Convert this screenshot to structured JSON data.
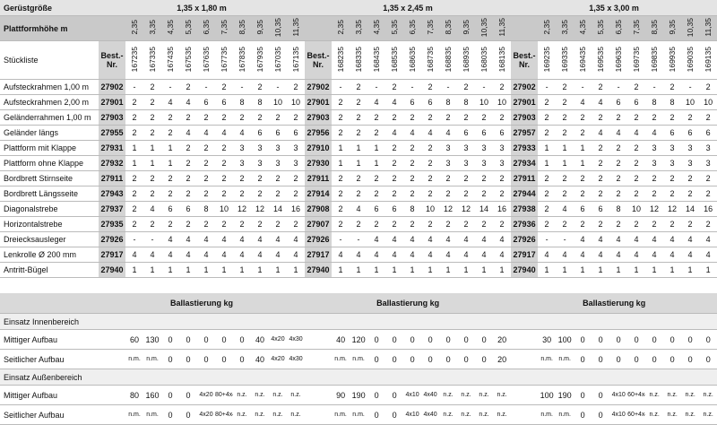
{
  "header": {
    "size_label": "Gerüstgröße",
    "height_label": "Plattformhöhe m",
    "list_label": "Stückliste",
    "best_label": "Best.-Nr."
  },
  "groups": [
    {
      "title": "1,35 x 1,80 m",
      "heights": [
        "2,35",
        "3,35",
        "4,35",
        "5,35",
        "6,35",
        "7,35",
        "8,35",
        "9,35",
        "10,35",
        "11,35"
      ],
      "article_numbers": [
        "167235",
        "167335",
        "167435",
        "167535",
        "167635",
        "167735",
        "167835",
        "167935",
        "167035",
        "167135"
      ]
    },
    {
      "title": "1,35 x 2,45 m",
      "heights": [
        "2,35",
        "3,35",
        "4,35",
        "5,35",
        "6,35",
        "7,35",
        "8,35",
        "9,35",
        "10,35",
        "11,35"
      ],
      "article_numbers": [
        "168235",
        "168335",
        "168435",
        "168535",
        "168635",
        "168735",
        "168835",
        "168935",
        "168035",
        "168135"
      ]
    },
    {
      "title": "1,35 x 3,00 m",
      "heights": [
        "2,35",
        "3,35",
        "4,35",
        "5,35",
        "6,35",
        "7,35",
        "8,35",
        "9,35",
        "10,35",
        "11,35"
      ],
      "article_numbers": [
        "169235",
        "169335",
        "169435",
        "169535",
        "169635",
        "169735",
        "169835",
        "169935",
        "169035",
        "169135"
      ]
    }
  ],
  "parts": [
    {
      "name": "Aufsteckrahmen 1,00 m",
      "best": [
        "27902",
        "27902",
        "27902"
      ],
      "values": [
        [
          "-",
          "2",
          "-",
          "2",
          "-",
          "2",
          "-",
          "2",
          "-",
          "2"
        ],
        [
          "-",
          "2",
          "-",
          "2",
          "-",
          "2",
          "-",
          "2",
          "-",
          "2"
        ],
        [
          "-",
          "2",
          "-",
          "2",
          "-",
          "2",
          "-",
          "2",
          "-",
          "2"
        ]
      ]
    },
    {
      "name": "Aufsteckrahmen 2,00 m",
      "best": [
        "27901",
        "27901",
        "27901"
      ],
      "values": [
        [
          "2",
          "2",
          "4",
          "4",
          "6",
          "6",
          "8",
          "8",
          "10",
          "10"
        ],
        [
          "2",
          "2",
          "4",
          "4",
          "6",
          "6",
          "8",
          "8",
          "10",
          "10"
        ],
        [
          "2",
          "2",
          "4",
          "4",
          "6",
          "6",
          "8",
          "8",
          "10",
          "10"
        ]
      ]
    },
    {
      "name": "Geländerrahmen 1,00 m",
      "best": [
        "27903",
        "27903",
        "27903"
      ],
      "values": [
        [
          "2",
          "2",
          "2",
          "2",
          "2",
          "2",
          "2",
          "2",
          "2",
          "2"
        ],
        [
          "2",
          "2",
          "2",
          "2",
          "2",
          "2",
          "2",
          "2",
          "2",
          "2"
        ],
        [
          "2",
          "2",
          "2",
          "2",
          "2",
          "2",
          "2",
          "2",
          "2",
          "2"
        ]
      ]
    },
    {
      "name": "Geländer längs",
      "best": [
        "27955",
        "27956",
        "27957"
      ],
      "values": [
        [
          "2",
          "2",
          "2",
          "4",
          "4",
          "4",
          "4",
          "6",
          "6",
          "6"
        ],
        [
          "2",
          "2",
          "2",
          "4",
          "4",
          "4",
          "4",
          "6",
          "6",
          "6"
        ],
        [
          "2",
          "2",
          "2",
          "4",
          "4",
          "4",
          "4",
          "6",
          "6",
          "6"
        ]
      ]
    },
    {
      "name": "Plattform mit Klappe",
      "best": [
        "27931",
        "27910",
        "27933"
      ],
      "values": [
        [
          "1",
          "1",
          "1",
          "2",
          "2",
          "2",
          "3",
          "3",
          "3",
          "3"
        ],
        [
          "1",
          "1",
          "1",
          "2",
          "2",
          "2",
          "3",
          "3",
          "3",
          "3"
        ],
        [
          "1",
          "1",
          "1",
          "2",
          "2",
          "2",
          "3",
          "3",
          "3",
          "3"
        ]
      ]
    },
    {
      "name": "Plattform ohne Klappe",
      "best": [
        "27932",
        "27930",
        "27934"
      ],
      "values": [
        [
          "1",
          "1",
          "1",
          "2",
          "2",
          "2",
          "3",
          "3",
          "3",
          "3"
        ],
        [
          "1",
          "1",
          "1",
          "2",
          "2",
          "2",
          "3",
          "3",
          "3",
          "3"
        ],
        [
          "1",
          "1",
          "1",
          "2",
          "2",
          "2",
          "3",
          "3",
          "3",
          "3"
        ]
      ]
    },
    {
      "name": "Bordbrett Stirnseite",
      "best": [
        "27911",
        "27911",
        "27911"
      ],
      "values": [
        [
          "2",
          "2",
          "2",
          "2",
          "2",
          "2",
          "2",
          "2",
          "2",
          "2"
        ],
        [
          "2",
          "2",
          "2",
          "2",
          "2",
          "2",
          "2",
          "2",
          "2",
          "2"
        ],
        [
          "2",
          "2",
          "2",
          "2",
          "2",
          "2",
          "2",
          "2",
          "2",
          "2"
        ]
      ]
    },
    {
      "name": "Bordbrett Längsseite",
      "best": [
        "27943",
        "27914",
        "27944"
      ],
      "values": [
        [
          "2",
          "2",
          "2",
          "2",
          "2",
          "2",
          "2",
          "2",
          "2",
          "2"
        ],
        [
          "2",
          "2",
          "2",
          "2",
          "2",
          "2",
          "2",
          "2",
          "2",
          "2"
        ],
        [
          "2",
          "2",
          "2",
          "2",
          "2",
          "2",
          "2",
          "2",
          "2",
          "2"
        ]
      ]
    },
    {
      "name": "Diagonalstrebe",
      "best": [
        "27937",
        "27908",
        "27938"
      ],
      "values": [
        [
          "2",
          "4",
          "6",
          "6",
          "8",
          "10",
          "12",
          "12",
          "14",
          "16"
        ],
        [
          "2",
          "4",
          "6",
          "6",
          "8",
          "10",
          "12",
          "12",
          "14",
          "16"
        ],
        [
          "2",
          "4",
          "6",
          "6",
          "8",
          "10",
          "12",
          "12",
          "14",
          "16"
        ]
      ]
    },
    {
      "name": "Horizontalstrebe",
      "best": [
        "27935",
        "27907",
        "27936"
      ],
      "values": [
        [
          "2",
          "2",
          "2",
          "2",
          "2",
          "2",
          "2",
          "2",
          "2",
          "2"
        ],
        [
          "2",
          "2",
          "2",
          "2",
          "2",
          "2",
          "2",
          "2",
          "2",
          "2"
        ],
        [
          "2",
          "2",
          "2",
          "2",
          "2",
          "2",
          "2",
          "2",
          "2",
          "2"
        ]
      ]
    },
    {
      "name": "Dreiecksausleger",
      "best": [
        "27926",
        "27926",
        "27926"
      ],
      "values": [
        [
          "-",
          "-",
          "4",
          "4",
          "4",
          "4",
          "4",
          "4",
          "4",
          "4"
        ],
        [
          "-",
          "-",
          "4",
          "4",
          "4",
          "4",
          "4",
          "4",
          "4",
          "4"
        ],
        [
          "-",
          "-",
          "4",
          "4",
          "4",
          "4",
          "4",
          "4",
          "4",
          "4"
        ]
      ]
    },
    {
      "name": "Lenkrolle Ø 200 mm",
      "best": [
        "27917",
        "27917",
        "27917"
      ],
      "values": [
        [
          "4",
          "4",
          "4",
          "4",
          "4",
          "4",
          "4",
          "4",
          "4",
          "4"
        ],
        [
          "4",
          "4",
          "4",
          "4",
          "4",
          "4",
          "4",
          "4",
          "4",
          "4"
        ],
        [
          "4",
          "4",
          "4",
          "4",
          "4",
          "4",
          "4",
          "4",
          "4",
          "4"
        ]
      ]
    },
    {
      "name": "Antritt-Bügel",
      "best": [
        "27940",
        "27940",
        "27940"
      ],
      "values": [
        [
          "1",
          "1",
          "1",
          "1",
          "1",
          "1",
          "1",
          "1",
          "1",
          "1"
        ],
        [
          "1",
          "1",
          "1",
          "1",
          "1",
          "1",
          "1",
          "1",
          "1",
          "1"
        ],
        [
          "1",
          "1",
          "1",
          "1",
          "1",
          "1",
          "1",
          "1",
          "1",
          "1"
        ]
      ]
    }
  ],
  "ballast": {
    "titles": [
      "Ballastierung kg",
      "Ballastierung kg",
      "Ballastierung kg"
    ],
    "sections": [
      {
        "title": "Einsatz Innenbereich",
        "rows": [
          {
            "name": "Mittiger Aufbau",
            "values": [
              [
                "60",
                "130",
                "0",
                "0",
                "0",
                "0",
                "0",
                "40",
                "4x20",
                "4x30"
              ],
              [
                "40",
                "120",
                "0",
                "0",
                "0",
                "0",
                "0",
                "0",
                "0",
                "20"
              ],
              [
                "30",
                "100",
                "0",
                "0",
                "0",
                "0",
                "0",
                "0",
                "0",
                "0"
              ]
            ]
          },
          {
            "name": "Seitlicher Aufbau",
            "values": [
              [
                "n.m.",
                "n.m.",
                "0",
                "0",
                "0",
                "0",
                "0",
                "40",
                "4x20",
                "4x30"
              ],
              [
                "n.m.",
                "n.m.",
                "0",
                "0",
                "0",
                "0",
                "0",
                "0",
                "0",
                "20"
              ],
              [
                "n.m.",
                "n.m.",
                "0",
                "0",
                "0",
                "0",
                "0",
                "0",
                "0",
                "0"
              ]
            ]
          }
        ]
      },
      {
        "title": "Einsatz Außenbereich",
        "rows": [
          {
            "name": "Mittiger Aufbau",
            "values": [
              [
                "80",
                "160",
                "0",
                "0",
                "4x20",
                "80+4x40",
                "n.z.",
                "n.z.",
                "n.z.",
                "n.z."
              ],
              [
                "90",
                "190",
                "0",
                "0",
                "4x10",
                "4x40",
                "n.z.",
                "n.z.",
                "n.z.",
                "n.z."
              ],
              [
                "100",
                "190",
                "0",
                "0",
                "4x10",
                "60+4x40",
                "n.z.",
                "n.z.",
                "n.z.",
                "n.z."
              ]
            ]
          },
          {
            "name": "Seitlicher Aufbau",
            "values": [
              [
                "n.m.",
                "n.m.",
                "0",
                "0",
                "4x20",
                "80+4x40",
                "n.z.",
                "n.z.",
                "n.z.",
                "n.z."
              ],
              [
                "n.m.",
                "n.m.",
                "0",
                "0",
                "4x10",
                "4x40",
                "n.z.",
                "n.z.",
                "n.z.",
                "n.z."
              ],
              [
                "n.m.",
                "n.m.",
                "0",
                "0",
                "4x10",
                "60+4x40",
                "n.z.",
                "n.z.",
                "n.z.",
                "n.z."
              ]
            ]
          }
        ]
      }
    ]
  }
}
